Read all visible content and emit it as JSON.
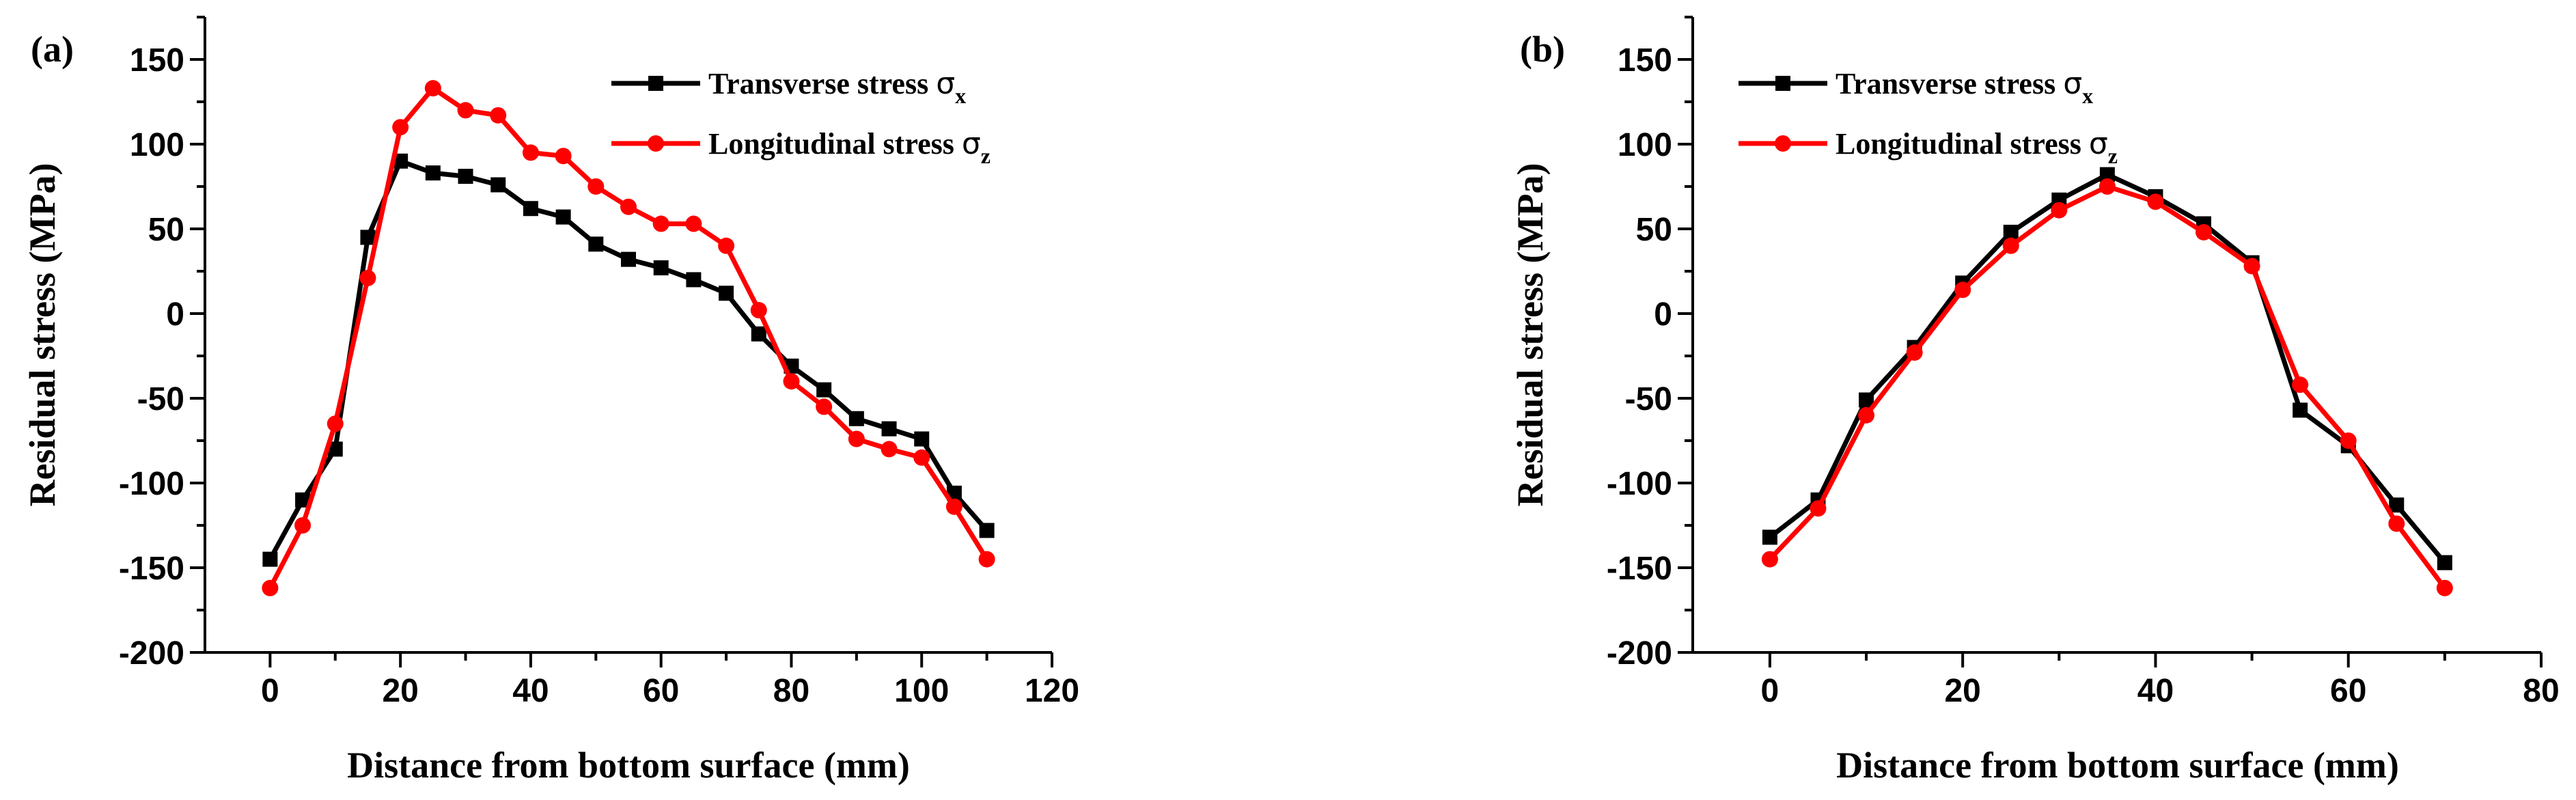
{
  "chart_data": [
    {
      "type": "line",
      "panel_label": "(a)",
      "xlabel": "Distance from bottom surface (mm)",
      "ylabel": "Residual stress (MPa)",
      "xlim": [
        -10,
        120
      ],
      "ylim": [
        -200,
        175
      ],
      "xticks": [
        0,
        20,
        40,
        60,
        80,
        100,
        120
      ],
      "yticks": [
        -200,
        -150,
        -100,
        -50,
        0,
        50,
        100,
        150
      ],
      "legend_position": "top-right",
      "series": [
        {
          "name": "Transverse stress σx",
          "label_main": "Transverse stress ",
          "label_symbol": "σ",
          "label_sub": "x",
          "color": "#000000",
          "marker": "square",
          "x": [
            0,
            5,
            10,
            15,
            20,
            25,
            30,
            35,
            40,
            45,
            50,
            55,
            60,
            65,
            70,
            75,
            80,
            85,
            90,
            95,
            100,
            105,
            110
          ],
          "y": [
            -145,
            -110,
            -80,
            45,
            90,
            83,
            81,
            76,
            62,
            57,
            41,
            32,
            27,
            20,
            12,
            -12,
            -31,
            -45,
            -62,
            -68,
            -74,
            -106,
            -128
          ]
        },
        {
          "name": "Longitudinal stress σz",
          "label_main": "Longitudinal stress ",
          "label_symbol": "σ",
          "label_sub": "z",
          "color": "#ff0000",
          "marker": "circle",
          "x": [
            0,
            5,
            10,
            15,
            20,
            25,
            30,
            35,
            40,
            45,
            50,
            55,
            60,
            65,
            70,
            75,
            80,
            85,
            90,
            95,
            100,
            105,
            110
          ],
          "y": [
            -162,
            -125,
            -65,
            21,
            110,
            133,
            120,
            117,
            95,
            93,
            75,
            63,
            53,
            53,
            40,
            2,
            -40,
            -55,
            -74,
            -80,
            -85,
            -114,
            -145
          ]
        }
      ]
    },
    {
      "type": "line",
      "panel_label": "(b)",
      "xlabel": "Distance from bottom surface (mm)",
      "ylabel": "Residual stress (MPa)",
      "xlim": [
        -8,
        80
      ],
      "ylim": [
        -200,
        175
      ],
      "xticks": [
        0,
        20,
        40,
        60,
        80
      ],
      "yticks": [
        -200,
        -150,
        -100,
        -50,
        0,
        50,
        100,
        150
      ],
      "legend_position": "top-left",
      "series": [
        {
          "name": "Transverse stress σx",
          "label_main": "Transverse stress ",
          "label_symbol": "σ",
          "label_sub": "x",
          "color": "#000000",
          "marker": "square",
          "x": [
            0,
            5,
            10,
            15,
            20,
            25,
            30,
            35,
            40,
            45,
            50,
            55,
            60,
            65,
            70
          ],
          "y": [
            -132,
            -110,
            -51,
            -20,
            18,
            48,
            67,
            82,
            69,
            53,
            30,
            -57,
            -78,
            -113,
            -147
          ]
        },
        {
          "name": "Longitudinal stress σz",
          "label_main": "Longitudinal stress ",
          "label_symbol": "σ",
          "label_sub": "z",
          "color": "#ff0000",
          "marker": "circle",
          "x": [
            0,
            5,
            10,
            15,
            20,
            25,
            30,
            35,
            40,
            45,
            50,
            55,
            60,
            65,
            70
          ],
          "y": [
            -145,
            -115,
            -60,
            -23,
            14,
            40,
            61,
            75,
            66,
            48,
            28,
            -42,
            -75,
            -124,
            -162
          ]
        }
      ]
    }
  ]
}
